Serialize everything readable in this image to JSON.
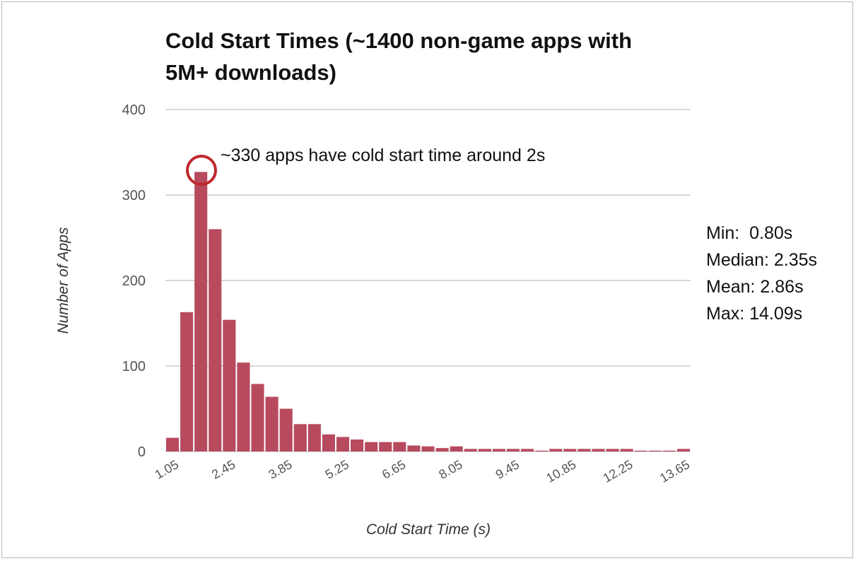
{
  "chart_data": {
    "type": "bar",
    "title_line1": "Cold Start Times (~1400 non-game apps with",
    "title_line2": "5M+ downloads)",
    "xlabel": "Cold Start Time (s)",
    "ylabel": "Number of Apps",
    "ylim": [
      0,
      400
    ],
    "yticks": [
      0,
      100,
      200,
      300,
      400
    ],
    "xtick_labels": [
      "1.05",
      "2.45",
      "3.85",
      "5.25",
      "6.65",
      "8.05",
      "9.45",
      "10.85",
      "12.25",
      "13.65"
    ],
    "bar_color": "#b84a5e",
    "grid": true,
    "values": [
      16,
      163,
      327,
      260,
      154,
      104,
      79,
      64,
      50,
      32,
      32,
      20,
      17,
      14,
      11,
      11,
      11,
      7,
      6,
      4,
      6,
      3,
      3,
      3,
      3,
      3,
      1,
      3,
      3,
      3,
      3,
      3,
      3,
      1,
      1,
      1,
      3
    ],
    "annotation": "~330 apps have cold start time around 2s",
    "annotation_color": "#c0282d"
  },
  "stats": {
    "min": "Min:  0.80s",
    "median": "Median: 2.35s",
    "mean": "Mean: 2.86s",
    "max": "Max: 14.09s"
  }
}
